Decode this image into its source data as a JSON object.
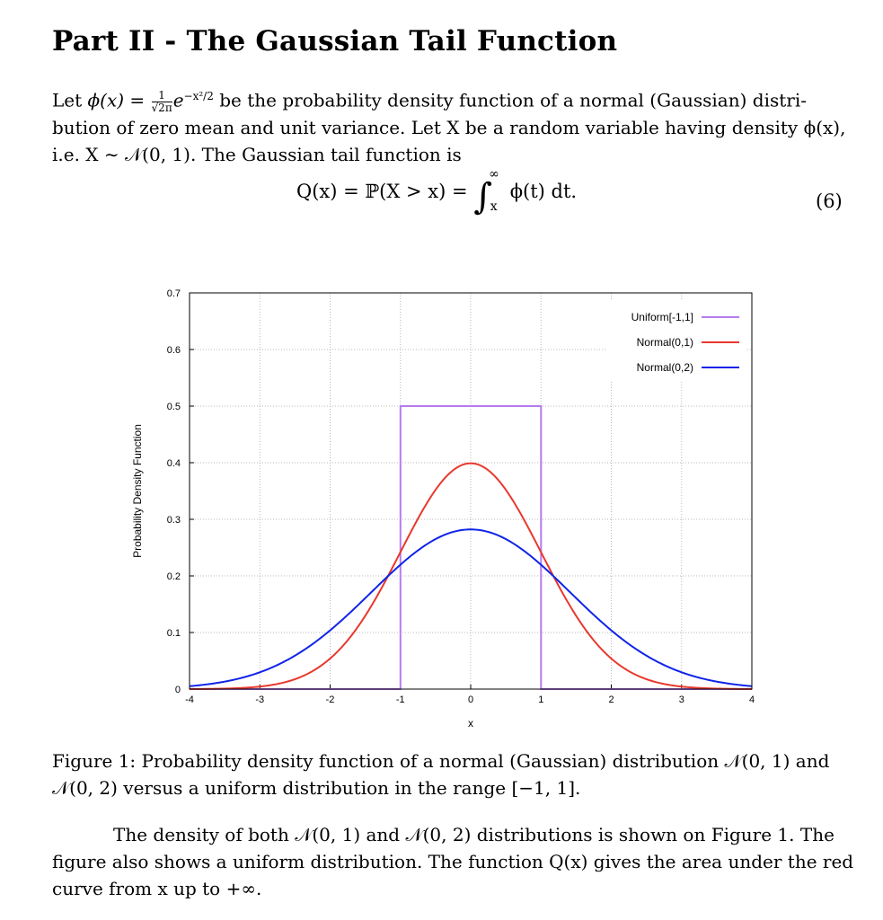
{
  "section_title": "Part II - The Gaussian Tail Function",
  "intro": {
    "line1_a": "Let ",
    "phi_x": "ϕ(x)",
    "equals": " = ",
    "frac_num": "1",
    "frac_den": "√2π",
    "exp_base": "e",
    "exp_sup": "−x²/2",
    "line1_b": " be the probability density function of a normal (Gaussian) distri-",
    "line2": "bution of zero mean and unit variance. Let X be a random variable having density ϕ(x),",
    "line3": "i.e. X ∼ 𝒩(0, 1). The Gaussian tail function is"
  },
  "equation": {
    "lhs": "Q(x) = ℙ(X > x) = ",
    "integral": "∫",
    "upper": "∞",
    "lower": "x",
    "integrand": "ϕ(t) dt.",
    "number": "(6)"
  },
  "chart_data": {
    "type": "line",
    "xlabel": "x",
    "ylabel": "Probability Density Function",
    "xlim": [
      -4,
      4
    ],
    "ylim": [
      0,
      0.7
    ],
    "xticks": [
      -4,
      -3,
      -2,
      -1,
      0,
      1,
      2,
      3,
      4
    ],
    "yticks": [
      0,
      0.1,
      0.2,
      0.3,
      0.4,
      0.5,
      0.6,
      0.7
    ],
    "ytick_labels": [
      "0",
      "0.1",
      "0.2",
      "0.3",
      "0.4",
      "0.5",
      "0.6",
      "0.7"
    ],
    "grid": true,
    "legend_position": "top-right",
    "series": [
      {
        "name": "Uniform[-1,1]",
        "color": "#b57bf0",
        "x": [
          -4,
          -1,
          -1,
          1,
          1,
          4
        ],
        "y": [
          0,
          0,
          0.5,
          0.5,
          0,
          0
        ]
      },
      {
        "name": "Normal(0,1)",
        "color": "#e8392e",
        "x": [
          -4,
          -3.5,
          -3,
          -2.5,
          -2,
          -1.5,
          -1,
          -0.5,
          0,
          0.5,
          1,
          1.5,
          2,
          2.5,
          3,
          3.5,
          4
        ],
        "y": [
          0.0001,
          0.0009,
          0.0044,
          0.0175,
          0.054,
          0.1295,
          0.242,
          0.3521,
          0.3989,
          0.3521,
          0.242,
          0.1295,
          0.054,
          0.0175,
          0.0044,
          0.0009,
          0.0001
        ]
      },
      {
        "name": "Normal(0,2)",
        "color": "#1024e8",
        "x": [
          -4,
          -3.5,
          -3,
          -2.5,
          -2,
          -1.5,
          -1,
          -0.5,
          0,
          0.5,
          1,
          1.5,
          2,
          2.5,
          3,
          3.5,
          4
        ],
        "y": [
          0.0103,
          0.0264,
          0.0297,
          0.0585,
          0.1038,
          0.1613,
          0.2197,
          0.2637,
          0.2821,
          0.2637,
          0.2197,
          0.1613,
          0.1038,
          0.0585,
          0.0297,
          0.0264,
          0.0103
        ]
      }
    ]
  },
  "caption": {
    "line1": "Figure 1: Probability density function of a normal (Gaussian) distribution 𝒩(0, 1) and",
    "line2": "𝒩(0, 2) versus a uniform distribution in the range [−1, 1]."
  },
  "body": {
    "line1": "The density of both 𝒩(0, 1) and 𝒩(0, 2) distributions is shown on Figure 1. The",
    "line2": "figure also shows a uniform distribution. The function Q(x) gives the area under the red",
    "line3": "curve from x up to +∞."
  }
}
